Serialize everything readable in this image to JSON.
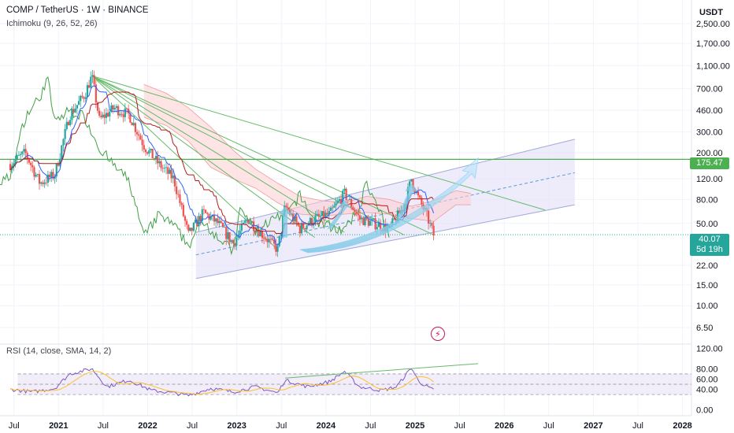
{
  "header": {
    "symbol": "COMP / TetherUS · 1W · BINANCE",
    "indicator": "Ichimoku (9, 26, 52, 26)",
    "rsi_label": "RSI (14, close, SMA, 14, 2)",
    "currency": "USDT"
  },
  "price_tags": {
    "resistance": "175.47",
    "last_price": "40.07",
    "countdown": "5d 19h"
  },
  "colors": {
    "candle_up": "#26a69a",
    "candle_down": "#ef5350",
    "tenkan": "#2962ff",
    "kijun": "#b71c1c",
    "chikou": "#43a047",
    "trendlines": "#66bb6a",
    "channel_fill": "#e8e4f8",
    "arrows": "#7ec8e3",
    "rsi_line": "#7e57c2",
    "rsi_ma": "#fbc02d",
    "tag_green": "#4caf50",
    "tag_teal": "#26a69a"
  },
  "chart_data": [
    {
      "type": "candlestick",
      "ylabel": "USDT",
      "yscale": "log",
      "ylim": [
        5.5,
        3200
      ],
      "y_ticks": [
        "2,500.00",
        "1,700.00",
        "1,100.00",
        "700.00",
        "460.00",
        "300.00",
        "200.00",
        "120.00",
        "80.00",
        "50.00",
        "22.00",
        "15.00",
        "10.00",
        "6.50"
      ],
      "x_ticks": [
        "Jul",
        "2021",
        "Jul",
        "2022",
        "Jul",
        "2023",
        "Jul",
        "2024",
        "Jul",
        "2025",
        "Jul",
        "2026",
        "Jul",
        "2027",
        "Jul",
        "2028"
      ],
      "x_range": [
        "2020-06",
        "2028-02"
      ],
      "horizontal_level": 175.47,
      "last_price": 40.07,
      "price_path": [
        [
          "2020-06",
          160
        ],
        [
          "2020-08",
          200
        ],
        [
          "2020-10",
          110
        ],
        [
          "2020-12",
          130
        ],
        [
          "2021-02",
          420
        ],
        [
          "2021-04",
          620
        ],
        [
          "2021-05",
          900
        ],
        [
          "2021-06",
          380
        ],
        [
          "2021-08",
          480
        ],
        [
          "2021-10",
          420
        ],
        [
          "2021-12",
          230
        ],
        [
          "2022-02",
          160
        ],
        [
          "2022-04",
          120
        ],
        [
          "2022-06",
          40
        ],
        [
          "2022-08",
          62
        ],
        [
          "2022-10",
          50
        ],
        [
          "2022-12",
          34
        ],
        [
          "2023-02",
          55
        ],
        [
          "2023-04",
          40
        ],
        [
          "2023-06",
          30
        ],
        [
          "2023-07",
          70
        ],
        [
          "2023-09",
          45
        ],
        [
          "2023-11",
          55
        ],
        [
          "2024-01",
          60
        ],
        [
          "2024-03",
          90
        ],
        [
          "2024-05",
          55
        ],
        [
          "2024-07",
          50
        ],
        [
          "2024-09",
          45
        ],
        [
          "2024-11",
          70
        ],
        [
          "2024-12",
          120
        ],
        [
          "2025-01",
          80
        ],
        [
          "2025-02",
          60
        ],
        [
          "2025-03",
          40
        ]
      ],
      "ichimoku_cloud": [
        [
          "2021-12",
          760,
          400
        ],
        [
          "2022-03",
          640,
          340
        ],
        [
          "2022-06",
          480,
          250
        ],
        [
          "2022-09",
          330,
          150
        ],
        [
          "2022-12",
          210,
          120
        ],
        [
          "2023-03",
          145,
          100
        ],
        [
          "2023-06",
          110,
          75
        ],
        [
          "2023-09",
          85,
          60
        ],
        [
          "2023-12",
          78,
          58
        ],
        [
          "2024-03",
          75,
          60
        ],
        [
          "2024-06",
          85,
          62
        ],
        [
          "2024-09",
          80,
          60
        ],
        [
          "2024-12",
          70,
          55
        ],
        [
          "2025-03",
          78,
          52
        ],
        [
          "2025-06",
          95,
          72
        ],
        [
          "2025-08",
          90,
          72
        ]
      ],
      "channel": {
        "lower": [
          [
            "2022-07",
            17
          ],
          [
            "2026-10",
            72
          ]
        ],
        "upper": [
          [
            "2022-07",
            42
          ],
          [
            "2026-10",
            260
          ]
        ],
        "mid": [
          [
            "2022-07",
            27
          ],
          [
            "2026-10",
            135
          ]
        ]
      },
      "fan_origin": [
        "2021-05",
        900
      ],
      "fan_targets": [
        [
          "2026-06",
          65
        ],
        [
          "2025-03",
          40
        ],
        [
          "2024-11",
          40
        ],
        [
          "2024-03",
          42
        ],
        [
          "2023-11",
          38
        ],
        [
          "2023-06",
          30
        ]
      ],
      "projection_arrows": [
        [
          "2023-09",
          30,
          "2025-09",
          180
        ]
      ]
    },
    {
      "type": "line",
      "title": "RSI (14, close, SMA, 14, 2)",
      "ylim": [
        -5,
        125
      ],
      "y_ticks": [
        "120.00",
        "80.00",
        "60.00",
        "40.00",
        "0.00"
      ],
      "bands": [
        70,
        50,
        30
      ],
      "rsi": [
        [
          "2020-06",
          40
        ],
        [
          "2020-09",
          35
        ],
        [
          "2020-12",
          42
        ],
        [
          "2021-02",
          70
        ],
        [
          "2021-05",
          80
        ],
        [
          "2021-07",
          45
        ],
        [
          "2021-10",
          58
        ],
        [
          "2022-01",
          38
        ],
        [
          "2022-04",
          33
        ],
        [
          "2022-06",
          28
        ],
        [
          "2022-09",
          42
        ],
        [
          "2022-12",
          35
        ],
        [
          "2023-03",
          45
        ],
        [
          "2023-06",
          33
        ],
        [
          "2023-07",
          58
        ],
        [
          "2023-10",
          45
        ],
        [
          "2024-01",
          55
        ],
        [
          "2024-03",
          75
        ],
        [
          "2024-05",
          45
        ],
        [
          "2024-08",
          38
        ],
        [
          "2024-10",
          45
        ],
        [
          "2024-12",
          82
        ],
        [
          "2025-01",
          55
        ],
        [
          "2025-03",
          38
        ]
      ],
      "divergence_line": [
        [
          "2023-07",
          62
        ],
        [
          "2025-09",
          90
        ]
      ]
    }
  ]
}
